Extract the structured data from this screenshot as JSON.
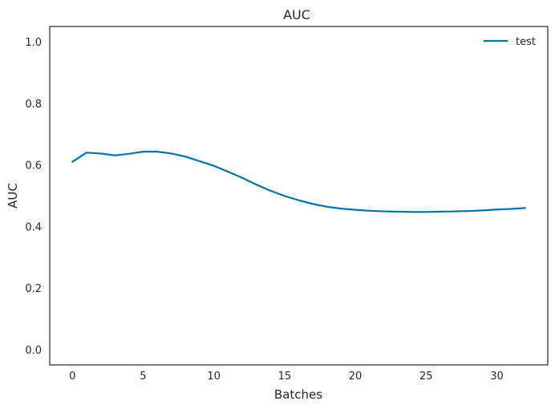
{
  "chart_data": {
    "type": "line",
    "title": "AUC",
    "xlabel": "Batches",
    "ylabel": "AUC",
    "xlim": [
      -1.6,
      33.6
    ],
    "ylim": [
      -0.05,
      1.05
    ],
    "xticks": [
      0,
      5,
      10,
      15,
      20,
      25,
      30
    ],
    "yticks": [
      0.0,
      0.2,
      0.4,
      0.6,
      0.8,
      1.0
    ],
    "xtick_labels": [
      "0",
      "5",
      "10",
      "15",
      "20",
      "25",
      "30"
    ],
    "ytick_labels": [
      "0.0",
      "0.2",
      "0.4",
      "0.6",
      "0.8",
      "1.0"
    ],
    "grid": false,
    "legend_position": "top-right",
    "series": [
      {
        "name": "test",
        "color": "#0072b2",
        "x": [
          0,
          1,
          2,
          3,
          4,
          5,
          6,
          7,
          8,
          9,
          10,
          11,
          12,
          13,
          14,
          15,
          16,
          17,
          18,
          19,
          20,
          21,
          22,
          23,
          24,
          25,
          26,
          27,
          28,
          29,
          30,
          31,
          32
        ],
        "y": [
          0.61,
          0.64,
          0.637,
          0.631,
          0.636,
          0.643,
          0.643,
          0.637,
          0.627,
          0.612,
          0.597,
          0.578,
          0.558,
          0.536,
          0.516,
          0.499,
          0.485,
          0.473,
          0.464,
          0.458,
          0.454,
          0.451,
          0.449,
          0.448,
          0.447,
          0.447,
          0.448,
          0.449,
          0.45,
          0.452,
          0.455,
          0.457,
          0.46
        ]
      }
    ]
  }
}
